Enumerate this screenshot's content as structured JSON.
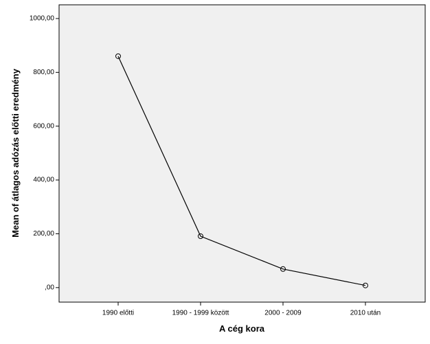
{
  "chart_data": {
    "type": "line",
    "x_label": "A cég kora",
    "y_label": "Mean of átlagos adózás előtti eredmény",
    "categories": [
      "1990 előtti",
      "1990 - 1999 között",
      "2000 - 2009",
      "2010 után"
    ],
    "series": [
      {
        "color": "#000000",
        "values": [
          860,
          191,
          69,
          8
        ]
      }
    ],
    "ylim": [
      -54,
      1051
    ],
    "yticks": [
      {
        "value": 0,
        "label": ",00"
      },
      {
        "value": 200,
        "label": "200,00"
      },
      {
        "value": 400,
        "label": "400,00"
      },
      {
        "value": 600,
        "label": "600,00"
      },
      {
        "value": 800,
        "label": "800,00"
      },
      {
        "value": 1000,
        "label": "1000,00"
      }
    ]
  }
}
